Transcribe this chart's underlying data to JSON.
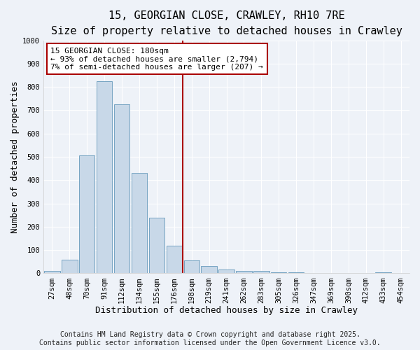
{
  "title": "15, GEORGIAN CLOSE, CRAWLEY, RH10 7RE",
  "subtitle": "Size of property relative to detached houses in Crawley",
  "xlabel": "Distribution of detached houses by size in Crawley",
  "ylabel": "Number of detached properties",
  "bar_labels": [
    "27sqm",
    "48sqm",
    "70sqm",
    "91sqm",
    "112sqm",
    "134sqm",
    "155sqm",
    "176sqm",
    "198sqm",
    "219sqm",
    "241sqm",
    "262sqm",
    "283sqm",
    "305sqm",
    "326sqm",
    "347sqm",
    "369sqm",
    "390sqm",
    "412sqm",
    "433sqm",
    "454sqm"
  ],
  "bar_values": [
    10,
    58,
    505,
    825,
    725,
    430,
    240,
    120,
    55,
    30,
    15,
    10,
    10,
    5,
    5,
    0,
    0,
    0,
    0,
    5,
    0
  ],
  "bar_color": "#c8d8e8",
  "bar_edge_color": "#6699bb",
  "vline_index": 7,
  "vline_color": "#aa0000",
  "annotation_text": "15 GEORGIAN CLOSE: 180sqm\n← 93% of detached houses are smaller (2,794)\n7% of semi-detached houses are larger (207) →",
  "annotation_box_color": "#ffffff",
  "annotation_box_edge_color": "#aa0000",
  "ylim": [
    0,
    1000
  ],
  "yticks": [
    0,
    100,
    200,
    300,
    400,
    500,
    600,
    700,
    800,
    900,
    1000
  ],
  "footer_line1": "Contains HM Land Registry data © Crown copyright and database right 2025.",
  "footer_line2": "Contains public sector information licensed under the Open Government Licence v3.0.",
  "background_color": "#eef2f8",
  "grid_color": "#ffffff",
  "title_fontsize": 11,
  "subtitle_fontsize": 9,
  "axis_label_fontsize": 9,
  "tick_fontsize": 7.5,
  "annotation_fontsize": 8,
  "footer_fontsize": 7
}
